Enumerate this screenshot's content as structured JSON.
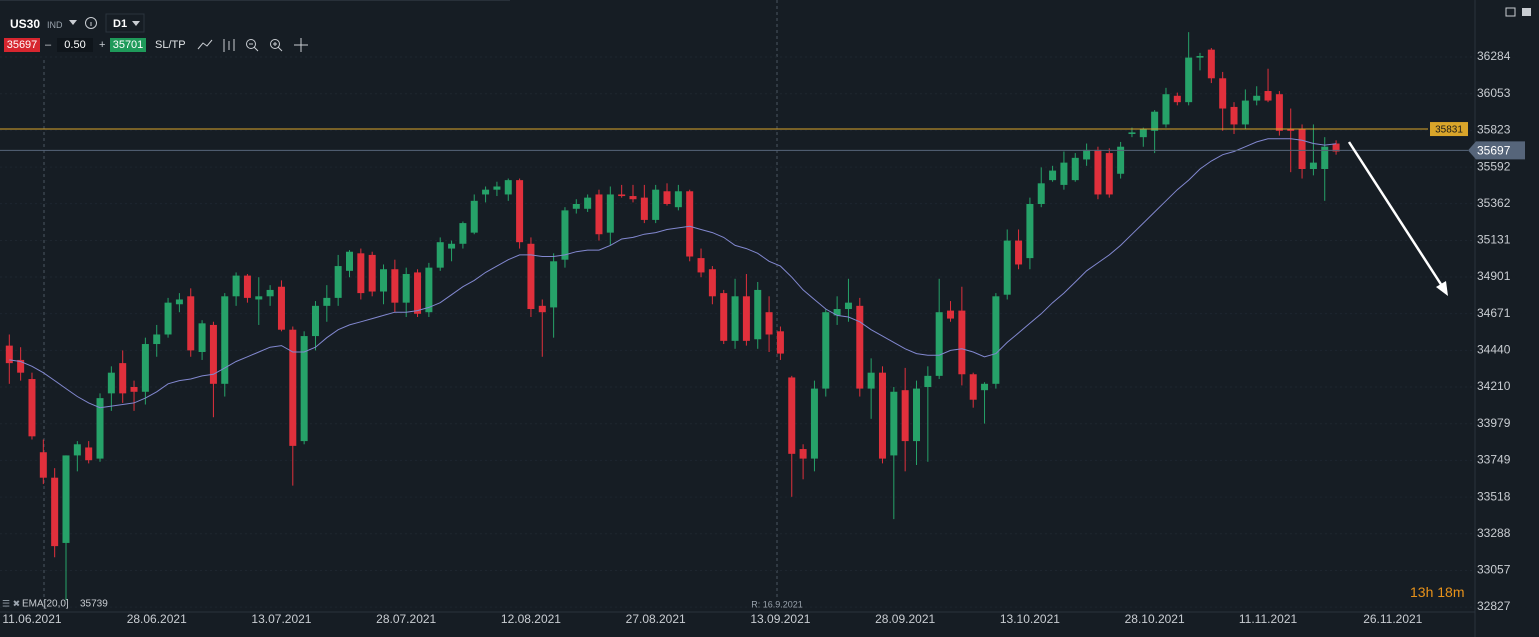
{
  "toolbar": {
    "symbol": "US30",
    "market": "IND",
    "timeframe": "D1",
    "sell": 35697,
    "volume": "0.50",
    "buy": 35701,
    "sltp": "SL/TP"
  },
  "countdown": "13h 18m",
  "chart_data": {
    "type": "candlestick",
    "x": [
      "09.06.2021",
      "10.06.2021",
      "11.06.2021",
      "14.06.2021",
      "15.06.2021",
      "16.06.2021",
      "17.06.2021",
      "18.06.2021",
      "21.06.2021",
      "22.06.2021",
      "23.06.2021",
      "24.06.2021",
      "25.06.2021",
      "28.06.2021",
      "29.06.2021",
      "30.06.2021",
      "01.07.2021",
      "02.07.2021",
      "05.07.2021",
      "06.07.2021",
      "07.07.2021",
      "08.07.2021",
      "09.07.2021",
      "12.07.2021",
      "13.07.2021",
      "14.07.2021",
      "15.07.2021",
      "16.07.2021",
      "19.07.2021",
      "20.07.2021",
      "21.07.2021",
      "22.07.2021",
      "23.07.2021",
      "26.07.2021",
      "27.07.2021",
      "28.07.2021",
      "29.07.2021",
      "30.07.2021",
      "02.08.2021",
      "03.08.2021",
      "04.08.2021",
      "05.08.2021",
      "06.08.2021",
      "09.08.2021",
      "10.08.2021",
      "11.08.2021",
      "12.08.2021",
      "13.08.2021",
      "16.08.2021",
      "17.08.2021",
      "18.08.2021",
      "19.08.2021",
      "20.08.2021",
      "23.08.2021",
      "24.08.2021",
      "25.08.2021",
      "26.08.2021",
      "27.08.2021",
      "30.08.2021",
      "31.08.2021",
      "01.09.2021",
      "02.09.2021",
      "03.09.2021",
      "06.09.2021",
      "07.09.2021",
      "08.09.2021",
      "09.09.2021",
      "10.09.2021",
      "13.09.2021",
      "14.09.2021",
      "15.09.2021",
      "16.09.2021",
      "17.09.2021",
      "20.09.2021",
      "21.09.2021",
      "22.09.2021",
      "23.09.2021",
      "24.09.2021",
      "27.09.2021",
      "28.09.2021",
      "29.09.2021",
      "30.09.2021",
      "01.10.2021",
      "04.10.2021",
      "05.10.2021",
      "06.10.2021",
      "07.10.2021",
      "08.10.2021",
      "11.10.2021",
      "12.10.2021",
      "13.10.2021",
      "14.10.2021",
      "15.10.2021",
      "18.10.2021",
      "19.10.2021",
      "20.10.2021",
      "21.10.2021",
      "22.10.2021",
      "25.10.2021",
      "26.10.2021",
      "27.10.2021",
      "28.10.2021",
      "29.10.2021",
      "01.11.2021",
      "02.11.2021",
      "03.11.2021",
      "04.11.2021",
      "05.11.2021",
      "08.11.2021",
      "09.11.2021",
      "10.11.2021",
      "11.11.2021",
      "12.11.2021",
      "15.11.2021",
      "16.11.2021",
      "17.11.2021",
      "18.11.2021",
      "19.11.2021"
    ],
    "open": [
      34470,
      34380,
      34260,
      33800,
      33640,
      33230,
      33780,
      33830,
      33760,
      34170,
      34360,
      34210,
      34180,
      34480,
      34540,
      34730,
      34780,
      34430,
      34600,
      34230,
      34780,
      34910,
      34760,
      34780,
      34840,
      34570,
      33870,
      34530,
      34720,
      34770,
      34940,
      35050,
      35040,
      34810,
      34950,
      34740,
      34930,
      34680,
      34960,
      35080,
      35110,
      35180,
      35420,
      35450,
      35420,
      35510,
      35110,
      34720,
      34710,
      35010,
      35330,
      35330,
      35420,
      35180,
      35420,
      35410,
      35400,
      35260,
      35440,
      35340,
      35440,
      35020,
      34950,
      34800,
      34500,
      34780,
      34510,
      34680,
      34560,
      34270,
      33820,
      33760,
      34200,
      34660,
      34700,
      34720,
      34200,
      34300,
      33780,
      34190,
      33870,
      34210,
      34280,
      34690,
      34690,
      34290,
      34190,
      34230,
      34790,
      35130,
      35020,
      35360,
      35510,
      35480,
      35510,
      35640,
      35700,
      35680,
      35550,
      35800,
      35780,
      35820,
      35860,
      36040,
      36000,
      36280,
      36330,
      36150,
      35970,
      35860,
      36010,
      36070,
      36050,
      35830,
      35830,
      35580,
      35580,
      35740
    ],
    "high": [
      34540,
      34460,
      34300,
      33880,
      33700,
      33780,
      33870,
      33870,
      34170,
      34340,
      34440,
      34250,
      34520,
      34600,
      34770,
      34800,
      34830,
      34630,
      34620,
      34800,
      34930,
      34920,
      34900,
      34850,
      34880,
      34590,
      34560,
      34750,
      34850,
      35040,
      35070,
      35080,
      35060,
      34980,
      35010,
      34960,
      34950,
      34990,
      35150,
      35130,
      35250,
      35420,
      35470,
      35500,
      35520,
      35520,
      35150,
      34760,
      35050,
      35340,
      35390,
      35420,
      35450,
      35470,
      35480,
      35480,
      35480,
      35480,
      35490,
      35480,
      35450,
      35080,
      34970,
      34820,
      34890,
      34920,
      34870,
      34780,
      34590,
      34280,
      33850,
      34250,
      34700,
      34780,
      34890,
      34770,
      34390,
      34340,
      34210,
      34330,
      34250,
      34340,
      34890,
      34750,
      34840,
      34300,
      34240,
      34800,
      35200,
      35200,
      35400,
      35590,
      35600,
      35690,
      35680,
      35740,
      35720,
      35710,
      35750,
      35840,
      35840,
      35950,
      36090,
      36060,
      36440,
      36310,
      36340,
      36190,
      36000,
      36080,
      36100,
      36210,
      36070,
      35960,
      35860,
      35860,
      35780,
      35760
    ],
    "low": [
      34230,
      34250,
      33880,
      33600,
      33140,
      32870,
      33680,
      33730,
      33740,
      34060,
      34110,
      34060,
      34100,
      34400,
      34520,
      34680,
      34400,
      34380,
      34020,
      34150,
      34720,
      34740,
      34600,
      34720,
      34560,
      33590,
      33850,
      34440,
      34620,
      34720,
      34900,
      34760,
      34780,
      34730,
      34680,
      34650,
      34650,
      34650,
      34940,
      35000,
      35080,
      35170,
      35370,
      35410,
      35380,
      35080,
      34650,
      34400,
      34520,
      34960,
      35300,
      35310,
      35130,
      35100,
      35400,
      35370,
      35240,
      35240,
      35350,
      35320,
      35000,
      34900,
      34730,
      34480,
      34450,
      34470,
      34450,
      34430,
      34380,
      33520,
      33630,
      33680,
      34150,
      34600,
      34620,
      34150,
      34010,
      33730,
      33380,
      33680,
      33720,
      33740,
      34260,
      34620,
      34220,
      34080,
      33980,
      34200,
      34760,
      34950,
      34950,
      35340,
      35500,
      35450,
      35500,
      35600,
      35390,
      35400,
      35520,
      35780,
      35720,
      35680,
      35840,
      35980,
      35980,
      36200,
      36120,
      35820,
      35800,
      35830,
      35980,
      36000,
      35790,
      35560,
      35520,
      35540,
      35380,
      35670
    ],
    "close": [
      34360,
      34300,
      33900,
      33640,
      33210,
      33780,
      33850,
      33750,
      34140,
      34300,
      34170,
      34180,
      34480,
      34540,
      34740,
      34760,
      34440,
      34610,
      34230,
      34780,
      34910,
      34770,
      34780,
      34820,
      34570,
      33840,
      34530,
      34720,
      34770,
      34970,
      35060,
      34800,
      34810,
      34950,
      34740,
      34920,
      34670,
      34960,
      35120,
      35110,
      35240,
      35380,
      35450,
      35470,
      35510,
      35120,
      34700,
      34680,
      35000,
      35320,
      35360,
      35400,
      35170,
      35420,
      35410,
      35390,
      35260,
      35450,
      35360,
      35440,
      35030,
      34930,
      34780,
      34500,
      34780,
      34500,
      34820,
      34540,
      34420,
      33790,
      33760,
      34200,
      34680,
      34700,
      34740,
      34200,
      34300,
      33760,
      34180,
      33870,
      34200,
      34280,
      34680,
      34640,
      34290,
      34130,
      34230,
      34780,
      35130,
      34980,
      35360,
      35490,
      35570,
      35620,
      35650,
      35700,
      35420,
      35420,
      35720,
      35810,
      35830,
      35940,
      36050,
      36000,
      36280,
      36290,
      36150,
      35960,
      35860,
      36010,
      36040,
      36010,
      35820,
      35820,
      35580,
      35620,
      35720,
      35690
    ],
    "up_color": "#26a269",
    "down_color": "#e0303c",
    "ema": {
      "name": "EMA[20,0]",
      "color": "#8288d0",
      "values": [
        34380,
        34370,
        34340,
        34300,
        34250,
        34200,
        34150,
        34110,
        34080,
        34090,
        34100,
        34110,
        34140,
        34180,
        34230,
        34250,
        34260,
        34280,
        34290,
        34330,
        34370,
        34400,
        34430,
        34460,
        34470,
        34430,
        34430,
        34460,
        34520,
        34570,
        34600,
        34620,
        34640,
        34660,
        34680,
        34680,
        34690,
        34710,
        34740,
        34790,
        34840,
        34880,
        34930,
        34970,
        35010,
        35040,
        35040,
        35030,
        35030,
        35040,
        35060,
        35070,
        35070,
        35100,
        35140,
        35150,
        35170,
        35180,
        35200,
        35210,
        35220,
        35200,
        35180,
        35150,
        35100,
        35080,
        35050,
        35000,
        34970,
        34900,
        34820,
        34760,
        34700,
        34660,
        34650,
        34620,
        34570,
        34530,
        34490,
        34450,
        34420,
        34410,
        34410,
        34440,
        34450,
        34430,
        34400,
        34420,
        34490,
        34550,
        34610,
        34670,
        34740,
        34800,
        34870,
        34940,
        34990,
        35040,
        35100,
        35170,
        35240,
        35310,
        35380,
        35450,
        35510,
        35580,
        35630,
        35670,
        35690,
        35720,
        35750,
        35770,
        35770,
        35770,
        35760,
        35740,
        35730,
        35739
      ]
    },
    "hlines": [
      {
        "value": 35831,
        "label": "35831",
        "color": "#d9a52a"
      }
    ],
    "last_price": 35697,
    "last_price_color": "#56657a",
    "ylim": [
      32796,
      36642
    ],
    "yticks": [
      36284,
      36053,
      35823,
      35592,
      35362,
      35131,
      34901,
      34671,
      34440,
      34210,
      33979,
      33749,
      33518,
      33288,
      33057,
      32827
    ],
    "xticks": [
      "11.06.2021",
      "28.06.2021",
      "13.07.2021",
      "28.07.2021",
      "12.08.2021",
      "27.08.2021",
      "13.09.2021",
      "28.09.2021",
      "13.10.2021",
      "28.10.2021",
      "11.11.2021",
      "26.11.2021"
    ],
    "marker_label": "R: 16.9.2021",
    "grid": true
  }
}
